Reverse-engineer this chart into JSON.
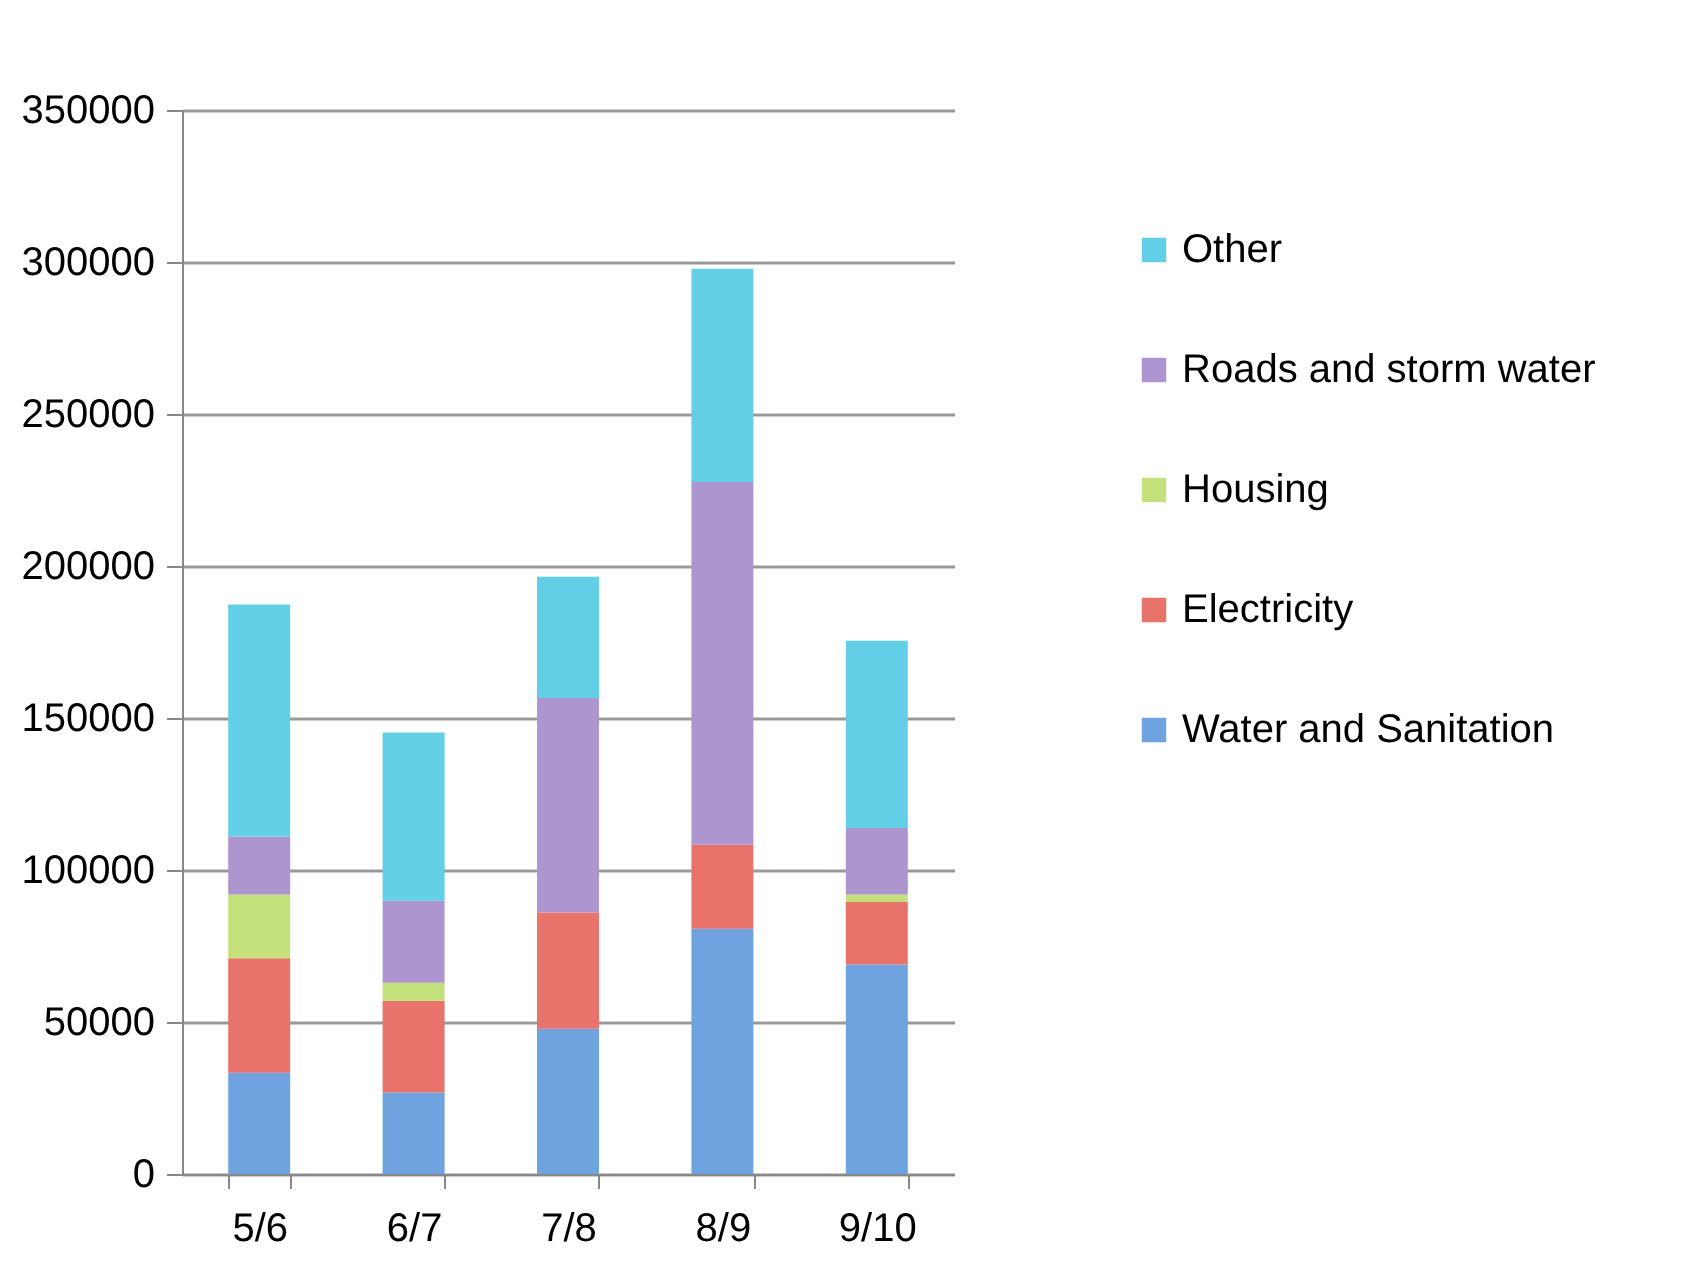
{
  "chart_data": {
    "type": "bar",
    "stacked": true,
    "categories": [
      "5/6",
      "6/7",
      "7/8",
      "8/9",
      "9/10"
    ],
    "series": [
      {
        "name": "Water and Sanitation",
        "color": "#6fa3e0",
        "values": [
          33300,
          26800,
          47800,
          80700,
          68900
        ]
      },
      {
        "name": "Electricity",
        "color": "#e8736a",
        "values": [
          37700,
          30200,
          38200,
          27600,
          20600
        ]
      },
      {
        "name": "Housing",
        "color": "#c4e07a",
        "values": [
          20900,
          5900,
          0,
          0,
          2400
        ]
      },
      {
        "name": "Roads and storm water",
        "color": "#ad96d0",
        "values": [
          19100,
          27000,
          70600,
          119300,
          21900
        ]
      },
      {
        "name": "Other",
        "color": "#62cfe6",
        "values": [
          76300,
          55300,
          39900,
          70200,
          61600
        ]
      }
    ],
    "ylim": [
      0,
      350000
    ],
    "yticks": [
      0,
      50000,
      100000,
      150000,
      200000,
      250000,
      300000,
      350000
    ],
    "grid": "y",
    "legend": "right"
  }
}
